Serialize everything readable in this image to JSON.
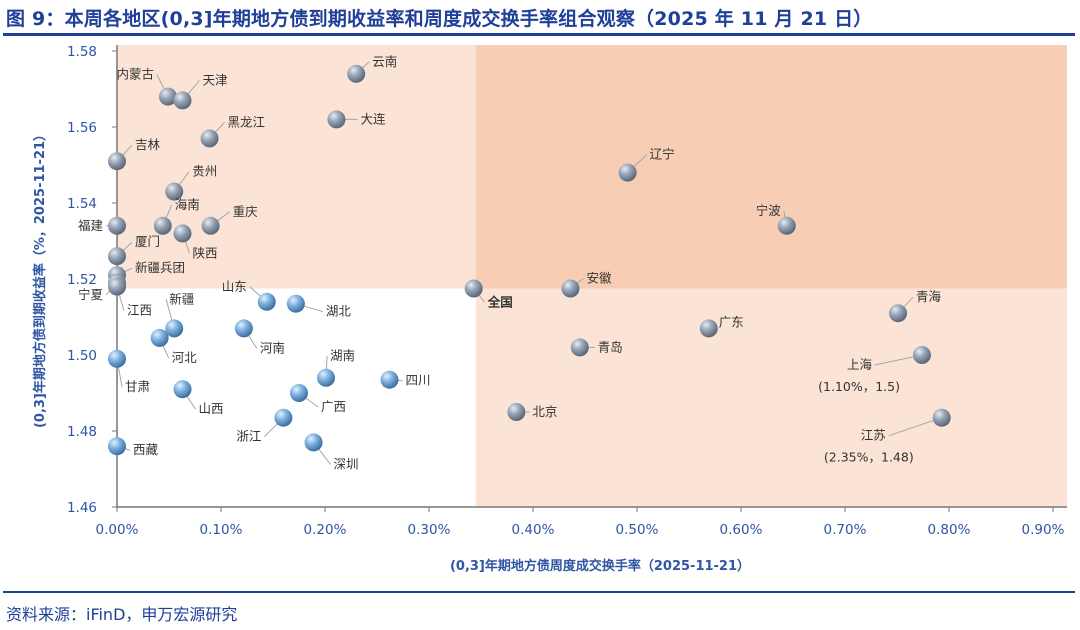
{
  "title": "图 9：本周各地区(0,3]年期地方债到期收益率和周度成交换手率组合观察（2025 年 11 月 21 日）",
  "source": "资料来源：iFinD，申万宏源研究",
  "chart_data": {
    "type": "scatter",
    "title": "",
    "xlabel": "(0,3]年期地方债周度成交换手率（2025-11-21）",
    "ylabel": "(0,3]年期地方债到期收益率（%，2025-11-21）",
    "xlim": [
      0,
      0.9
    ],
    "ylim": [
      1.46,
      1.58
    ],
    "x_unit": "%",
    "x_ticks": [
      "0.00%",
      "0.10%",
      "0.20%",
      "0.30%",
      "0.40%",
      "0.50%",
      "0.60%",
      "0.70%",
      "0.80%",
      "0.90%"
    ],
    "y_ticks": [
      "1.46",
      "1.48",
      "1.50",
      "1.52",
      "1.54",
      "1.56",
      "1.58"
    ],
    "grid": false,
    "quadrant_split": {
      "x": 0.345,
      "y": 1.5175
    },
    "colors": {
      "quadrant_light": "#fbe4d6",
      "quadrant_dark": "#f7ceb3",
      "highlight_label": "#ff0000",
      "point_blue": "#6fa7de",
      "point_gray": "#8e9bab"
    },
    "points": [
      {
        "name": "云南",
        "x": 0.23,
        "y": 1.574
      },
      {
        "name": "内蒙古",
        "x": 0.049,
        "y": 1.568
      },
      {
        "name": "天津",
        "x": 0.063,
        "y": 1.567
      },
      {
        "name": "大连",
        "x": 0.211,
        "y": 1.562
      },
      {
        "name": "黑龙江",
        "x": 0.089,
        "y": 1.557
      },
      {
        "name": "吉林",
        "x": 0.0,
        "y": 1.551
      },
      {
        "name": "贵州",
        "x": 0.055,
        "y": 1.543
      },
      {
        "name": "海南",
        "x": 0.044,
        "y": 1.534
      },
      {
        "name": "陕西",
        "x": 0.063,
        "y": 1.532
      },
      {
        "name": "重庆",
        "x": 0.09,
        "y": 1.534
      },
      {
        "name": "福建",
        "x": 0.0,
        "y": 1.534
      },
      {
        "name": "厦门",
        "x": 0.0,
        "y": 1.526
      },
      {
        "name": "新疆兵团",
        "x": 0.0,
        "y": 1.521
      },
      {
        "name": "宁夏",
        "x": 0.0,
        "y": 1.519
      },
      {
        "name": "江西",
        "x": 0.0,
        "y": 1.518
      },
      {
        "name": "辽宁",
        "x": 0.491,
        "y": 1.548
      },
      {
        "name": "宁波",
        "x": 0.644,
        "y": 1.534
      },
      {
        "name": "全国",
        "x": 0.343,
        "y": 1.5175,
        "highlight": true
      },
      {
        "name": "安徽",
        "x": 0.436,
        "y": 1.5175
      },
      {
        "name": "山东",
        "x": 0.144,
        "y": 1.514
      },
      {
        "name": "湖北",
        "x": 0.172,
        "y": 1.5135
      },
      {
        "name": "新疆",
        "x": 0.055,
        "y": 1.507
      },
      {
        "name": "河北",
        "x": 0.041,
        "y": 1.5045
      },
      {
        "name": "河南",
        "x": 0.122,
        "y": 1.507
      },
      {
        "name": "广东",
        "x": 0.569,
        "y": 1.507
      },
      {
        "name": "青海",
        "x": 0.751,
        "y": 1.511
      },
      {
        "name": "青岛",
        "x": 0.445,
        "y": 1.502
      },
      {
        "name": "甘肃",
        "x": 0.0,
        "y": 1.499
      },
      {
        "name": "上海",
        "x": 0.774,
        "y": 1.5,
        "note": "(1.10%，1.5)"
      },
      {
        "name": "湖南",
        "x": 0.201,
        "y": 1.494
      },
      {
        "name": "四川",
        "x": 0.262,
        "y": 1.4935
      },
      {
        "name": "山西",
        "x": 0.063,
        "y": 1.491
      },
      {
        "name": "广西",
        "x": 0.175,
        "y": 1.49
      },
      {
        "name": "浙江",
        "x": 0.16,
        "y": 1.4835
      },
      {
        "name": "北京",
        "x": 0.384,
        "y": 1.485
      },
      {
        "name": "江苏",
        "x": 0.793,
        "y": 1.4835,
        "note": "(2.35%，1.48)"
      },
      {
        "name": "深圳",
        "x": 0.189,
        "y": 1.477
      },
      {
        "name": "西藏",
        "x": 0.0,
        "y": 1.476
      }
    ]
  }
}
